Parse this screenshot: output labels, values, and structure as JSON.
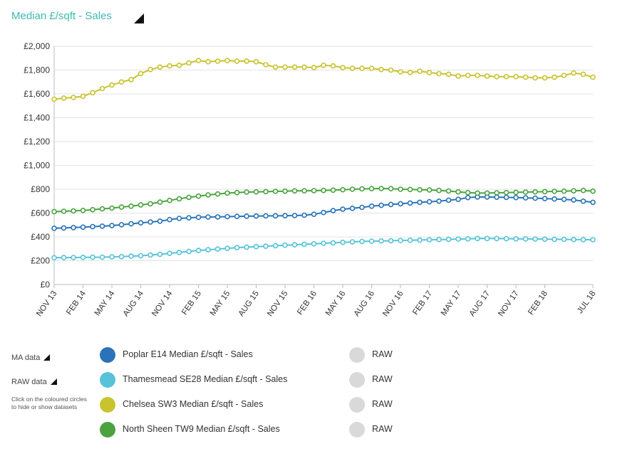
{
  "title": "Median £/sqft - Sales",
  "controls": {
    "ma_label": "MA data",
    "raw_label": "RAW data",
    "hint": "Click on the coloured circles to hide or show datasets"
  },
  "legend": [
    {
      "label": "Poplar E14 Median £/sqft - Sales",
      "color": "#2a73b8",
      "raw_label": "RAW"
    },
    {
      "label": "Thamesmead SE28 Median £/sqft - Sales",
      "color": "#56c3d8",
      "raw_label": "RAW"
    },
    {
      "label": "Chelsea SW3 Median £/sqft - Sales",
      "color": "#c8c42e",
      "raw_label": "RAW"
    },
    {
      "label": "North Sheen TW9 Median £/sqft - Sales",
      "color": "#4aa33f",
      "raw_label": "RAW"
    }
  ],
  "chart_data": {
    "type": "line",
    "title": "Median £/sqft - Sales",
    "xlabel": "",
    "ylabel": "",
    "ylim": [
      0,
      2000
    ],
    "y_ticks": [
      0,
      200,
      400,
      600,
      800,
      1000,
      1200,
      1400,
      1600,
      1800,
      2000
    ],
    "y_tick_labels": [
      "£0",
      "£200",
      "£400",
      "£600",
      "£800",
      "£1,000",
      "£1,200",
      "£1,400",
      "£1,600",
      "£1,800",
      "£2,000"
    ],
    "x_tick_labels": [
      "NOV 13",
      "FEB 14",
      "MAY 14",
      "AUG 14",
      "NOV 14",
      "FEB 15",
      "MAY 15",
      "AUG 15",
      "NOV 15",
      "FEB 16",
      "MAY 16",
      "AUG 16",
      "NOV 16",
      "FEB 17",
      "MAY 17",
      "AUG 17",
      "NOV 17",
      "FEB 18",
      "JUL 18"
    ],
    "x_tick_month_index": [
      0,
      3,
      6,
      9,
      12,
      15,
      18,
      21,
      24,
      27,
      30,
      33,
      36,
      39,
      42,
      45,
      48,
      51,
      56
    ],
    "grid": true,
    "series": [
      {
        "name": "Poplar E14 Median £/sqft - Sales",
        "color": "#2a73b8",
        "values": [
          472,
          475,
          478,
          482,
          486,
          490,
          495,
          502,
          510,
          518,
          525,
          532,
          545,
          555,
          560,
          565,
          567,
          568,
          570,
          572,
          574,
          575,
          576,
          577,
          578,
          579,
          582,
          590,
          605,
          620,
          632,
          640,
          648,
          658,
          665,
          672,
          678,
          684,
          690,
          695,
          700,
          708,
          715,
          730,
          735,
          735,
          733,
          732,
          730,
          728,
          725,
          722,
          718,
          715,
          710,
          700,
          690
        ]
      },
      {
        "name": "Thamesmead SE28 Median £/sqft - Sales",
        "color": "#56c3d8",
        "values": [
          225,
          226,
          227,
          228,
          229,
          230,
          232,
          234,
          238,
          242,
          248,
          254,
          262,
          270,
          278,
          286,
          292,
          298,
          304,
          310,
          314,
          318,
          322,
          326,
          330,
          334,
          338,
          342,
          346,
          350,
          354,
          358,
          362,
          364,
          366,
          368,
          370,
          372,
          374,
          376,
          378,
          380,
          382,
          384,
          386,
          386,
          386,
          385,
          384,
          383,
          382,
          381,
          380,
          379,
          378,
          377,
          376
        ]
      },
      {
        "name": "Chelsea SW3 Median £/sqft - Sales",
        "color": "#c8c42e",
        "values": [
          1555,
          1565,
          1570,
          1580,
          1610,
          1645,
          1675,
          1700,
          1720,
          1770,
          1805,
          1825,
          1835,
          1840,
          1860,
          1880,
          1870,
          1875,
          1880,
          1875,
          1875,
          1870,
          1845,
          1825,
          1825,
          1825,
          1825,
          1820,
          1840,
          1835,
          1820,
          1815,
          1815,
          1815,
          1805,
          1800,
          1785,
          1780,
          1790,
          1780,
          1770,
          1765,
          1750,
          1755,
          1755,
          1750,
          1745,
          1745,
          1745,
          1740,
          1735,
          1735,
          1740,
          1755,
          1775,
          1765,
          1740
        ]
      },
      {
        "name": "North Sheen TW9 Median £/sqft - Sales",
        "color": "#4aa33f",
        "values": [
          612,
          615,
          618,
          622,
          628,
          635,
          642,
          650,
          658,
          668,
          678,
          692,
          706,
          720,
          732,
          742,
          752,
          760,
          768,
          772,
          776,
          778,
          780,
          782,
          784,
          786,
          787,
          788,
          790,
          792,
          796,
          800,
          803,
          805,
          806,
          805,
          800,
          798,
          796,
          794,
          790,
          785,
          778,
          772,
          768,
          768,
          770,
          772,
          774,
          776,
          778,
          780,
          782,
          784,
          787,
          790,
          784
        ]
      }
    ]
  }
}
